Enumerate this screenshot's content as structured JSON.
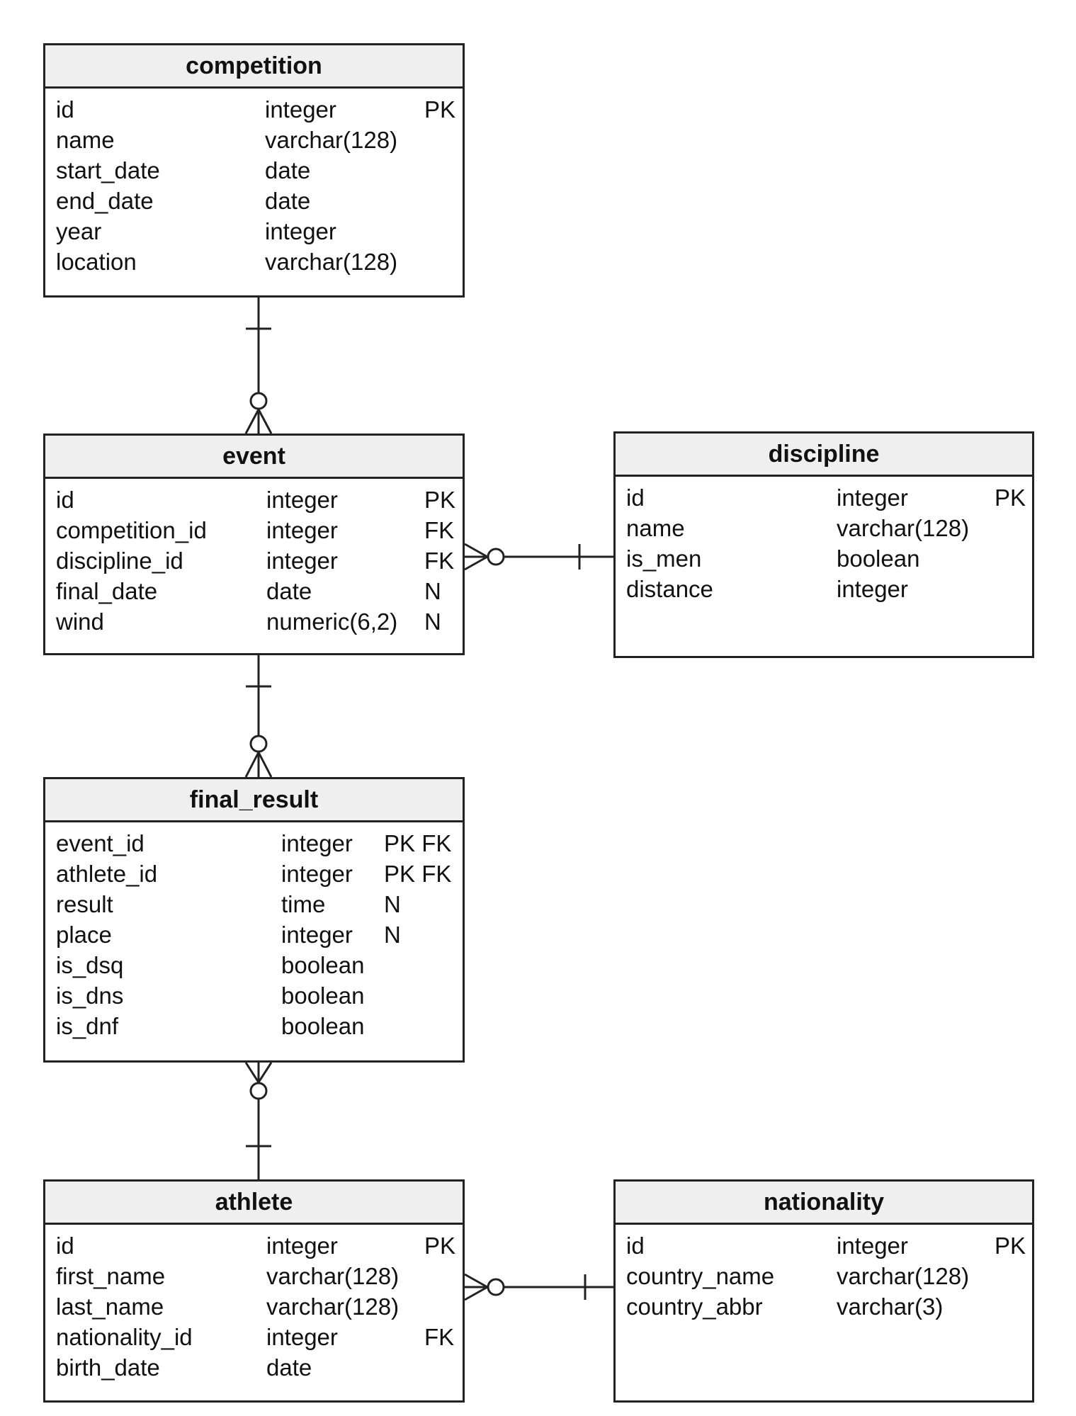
{
  "colors": {
    "line": "#222222",
    "header_fill": "#efefef",
    "background": "#ffffff"
  },
  "entities": {
    "competition": {
      "name": "competition",
      "attributes": [
        {
          "name": "id",
          "type": "integer",
          "key": "PK"
        },
        {
          "name": "name",
          "type": "varchar(128)",
          "key": ""
        },
        {
          "name": "start_date",
          "type": "date",
          "key": ""
        },
        {
          "name": "end_date",
          "type": "date",
          "key": ""
        },
        {
          "name": "year",
          "type": "integer",
          "key": ""
        },
        {
          "name": "location",
          "type": "varchar(128)",
          "key": ""
        }
      ]
    },
    "event": {
      "name": "event",
      "attributes": [
        {
          "name": "id",
          "type": "integer",
          "key": "PK"
        },
        {
          "name": "competition_id",
          "type": "integer",
          "key": "FK"
        },
        {
          "name": "discipline_id",
          "type": "integer",
          "key": "FK"
        },
        {
          "name": "final_date",
          "type": "date",
          "key": "N"
        },
        {
          "name": "wind",
          "type": "numeric(6,2)",
          "key": "N"
        }
      ]
    },
    "discipline": {
      "name": "discipline",
      "attributes": [
        {
          "name": "id",
          "type": "integer",
          "key": "PK"
        },
        {
          "name": "name",
          "type": "varchar(128)",
          "key": ""
        },
        {
          "name": "is_men",
          "type": "boolean",
          "key": ""
        },
        {
          "name": "distance",
          "type": "integer",
          "key": ""
        }
      ]
    },
    "final_result": {
      "name": "final_result",
      "attributes": [
        {
          "name": "event_id",
          "type": "integer",
          "key": "PK FK"
        },
        {
          "name": "athlete_id",
          "type": "integer",
          "key": "PK FK"
        },
        {
          "name": "result",
          "type": "time",
          "key": "N"
        },
        {
          "name": "place",
          "type": "integer",
          "key": "N"
        },
        {
          "name": "is_dsq",
          "type": "boolean",
          "key": ""
        },
        {
          "name": "is_dns",
          "type": "boolean",
          "key": ""
        },
        {
          "name": "is_dnf",
          "type": "boolean",
          "key": ""
        }
      ]
    },
    "athlete": {
      "name": "athlete",
      "attributes": [
        {
          "name": "id",
          "type": "integer",
          "key": "PK"
        },
        {
          "name": "first_name",
          "type": "varchar(128)",
          "key": ""
        },
        {
          "name": "last_name",
          "type": "varchar(128)",
          "key": ""
        },
        {
          "name": "nationality_id",
          "type": "integer",
          "key": "FK"
        },
        {
          "name": "birth_date",
          "type": "date",
          "key": ""
        }
      ]
    },
    "nationality": {
      "name": "nationality",
      "attributes": [
        {
          "name": "id",
          "type": "integer",
          "key": "PK"
        },
        {
          "name": "country_name",
          "type": "varchar(128)",
          "key": ""
        },
        {
          "name": "country_abbr",
          "type": "varchar(3)",
          "key": ""
        }
      ]
    }
  },
  "relationships": [
    {
      "from": "competition",
      "to": "event",
      "from_cardinality": "one",
      "to_cardinality": "zero-or-many"
    },
    {
      "from": "discipline",
      "to": "event",
      "from_cardinality": "one",
      "to_cardinality": "zero-or-many"
    },
    {
      "from": "event",
      "to": "final_result",
      "from_cardinality": "one",
      "to_cardinality": "zero-or-many"
    },
    {
      "from": "athlete",
      "to": "final_result",
      "from_cardinality": "one",
      "to_cardinality": "zero-or-many"
    },
    {
      "from": "nationality",
      "to": "athlete",
      "from_cardinality": "one",
      "to_cardinality": "zero-or-many"
    }
  ]
}
